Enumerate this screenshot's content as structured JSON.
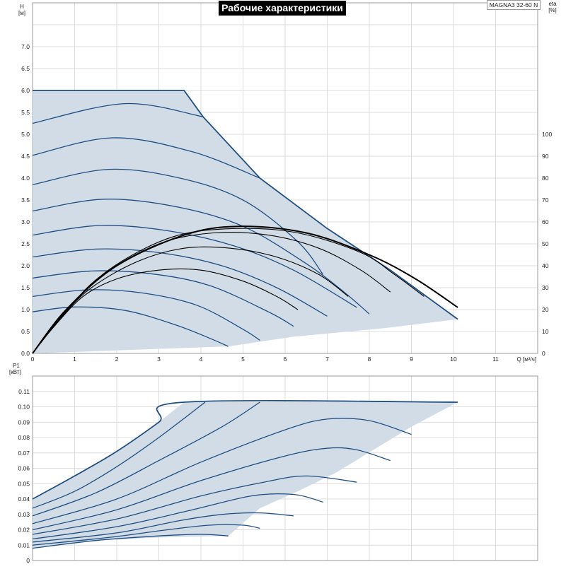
{
  "header": {
    "title": "Рабочие характеристики",
    "model": "MAGNA3 32-60 N"
  },
  "colors": {
    "fill": "#d2dce6",
    "curve": "#1f4f82",
    "eff": "#000000",
    "grid": "#dcdcdc"
  },
  "chart_data": [
    {
      "id": "head",
      "type": "line",
      "title": "Рабочие характеристики",
      "xlabel": "Q [м³/ч]",
      "ylabel": "H [м]",
      "y2label": "eta [%]",
      "xlim": [
        0,
        12
      ],
      "ylim": [
        0,
        8
      ],
      "y2lim": [
        0,
        160
      ],
      "x_ticks": [
        "0",
        "1",
        "2",
        "3",
        "4",
        "5",
        "6",
        "7",
        "8",
        "9",
        "10",
        "11"
      ],
      "y_ticks": [
        "0.0",
        "0.5",
        "1.0",
        "1.5",
        "2.0",
        "2.5",
        "3.0",
        "3.5",
        "4.0",
        "4.5",
        "5.0",
        "5.5",
        "6.0",
        "6.5",
        "7.0"
      ],
      "y2_ticks": [
        "0",
        "10",
        "20",
        "30",
        "40",
        "50",
        "60",
        "70",
        "80",
        "90",
        "100"
      ],
      "grid": true,
      "envelope": [
        [
          0,
          6.0
        ],
        [
          3.6,
          6.0
        ],
        [
          4.05,
          5.4
        ],
        [
          5.4,
          4.0
        ],
        [
          7.0,
          2.85
        ],
        [
          8.5,
          1.9
        ],
        [
          10.1,
          0.78
        ],
        [
          8.4,
          0.58
        ],
        [
          6.2,
          0.38
        ],
        [
          4.65,
          0.16
        ],
        [
          0,
          0
        ]
      ],
      "series": [
        {
          "values": [
            [
              0,
              5.25
            ],
            [
              2.2,
              5.7
            ],
            [
              4.05,
              5.4
            ]
          ]
        },
        {
          "values": [
            [
              0,
              4.52
            ],
            [
              1.9,
              4.92
            ],
            [
              3.8,
              4.6
            ],
            [
              5.4,
              4.0
            ]
          ]
        },
        {
          "values": [
            [
              0,
              3.85
            ],
            [
              1.8,
              4.2
            ],
            [
              3.5,
              4.0
            ],
            [
              5.0,
              3.5
            ],
            [
              6.3,
              2.55
            ],
            [
              6.9,
              1.8
            ]
          ]
        },
        {
          "values": [
            [
              0,
              3.25
            ],
            [
              1.7,
              3.52
            ],
            [
              3.4,
              3.35
            ],
            [
              5.0,
              2.9
            ],
            [
              6.5,
              2.05
            ],
            [
              7.4,
              1.4
            ],
            [
              8.0,
              0.9
            ]
          ]
        },
        {
          "values": [
            [
              0,
              2.7
            ],
            [
              1.6,
              2.92
            ],
            [
              3.2,
              2.8
            ],
            [
              4.8,
              2.45
            ],
            [
              6.2,
              1.9
            ],
            [
              7.7,
              1.05
            ]
          ]
        },
        {
          "values": [
            [
              0,
              2.2
            ],
            [
              1.5,
              2.38
            ],
            [
              3.0,
              2.3
            ],
            [
              4.5,
              2.0
            ],
            [
              5.8,
              1.5
            ],
            [
              7.0,
              0.85
            ]
          ]
        },
        {
          "values": [
            [
              0,
              1.72
            ],
            [
              1.4,
              1.88
            ],
            [
              2.8,
              1.82
            ],
            [
              4.2,
              1.55
            ],
            [
              5.6,
              0.95
            ],
            [
              6.2,
              0.62
            ]
          ]
        },
        {
          "values": [
            [
              0,
              1.3
            ],
            [
              1.3,
              1.45
            ],
            [
              2.6,
              1.38
            ],
            [
              3.9,
              1.1
            ],
            [
              5.0,
              0.55
            ],
            [
              5.4,
              0.3
            ]
          ]
        },
        {
          "values": [
            [
              0,
              0.95
            ],
            [
              1.0,
              1.06
            ],
            [
              2.2,
              0.98
            ],
            [
              3.4,
              0.65
            ],
            [
              4.2,
              0.35
            ],
            [
              4.65,
              0.16
            ]
          ]
        }
      ],
      "efficiency_series": [
        {
          "values": [
            [
              0,
              0
            ],
            [
              0.5,
              12
            ],
            [
              1.2,
              26
            ],
            [
              2.0,
              34
            ],
            [
              3.0,
              38
            ],
            [
              4.0,
              38
            ],
            [
              5.0,
              33
            ],
            [
              5.8,
              26
            ],
            [
              6.3,
              20
            ]
          ]
        },
        {
          "values": [
            [
              0,
              0
            ],
            [
              0.6,
              15
            ],
            [
              1.4,
              30
            ],
            [
              2.5,
              42
            ],
            [
              3.6,
              48
            ],
            [
              4.7,
              48
            ],
            [
              5.8,
              44
            ],
            [
              6.8,
              36
            ],
            [
              7.5,
              26
            ]
          ]
        },
        {
          "values": [
            [
              0,
              0
            ],
            [
              0.7,
              17
            ],
            [
              1.6,
              35
            ],
            [
              3.0,
              50
            ],
            [
              4.3,
              55
            ],
            [
              5.6,
              54
            ],
            [
              6.8,
              48
            ],
            [
              7.8,
              38
            ],
            [
              8.5,
              28
            ]
          ]
        },
        {
          "values": [
            [
              0,
              0
            ],
            [
              0.8,
              19
            ],
            [
              1.8,
              38
            ],
            [
              3.3,
              53
            ],
            [
              4.8,
              57
            ],
            [
              6.3,
              55
            ],
            [
              7.8,
              46
            ],
            [
              8.6,
              36
            ],
            [
              9.3,
              26
            ]
          ]
        },
        {
          "values": [
            [
              0,
              0
            ],
            [
              0.8,
              20
            ],
            [
              2.0,
              40
            ],
            [
              3.6,
              54
            ],
            [
              4.9,
              58
            ],
            [
              6.5,
              55
            ],
            [
              8.0,
              45
            ],
            [
              9.1,
              34
            ],
            [
              10.1,
              21
            ]
          ]
        }
      ]
    },
    {
      "id": "power",
      "type": "line",
      "xlabel": "",
      "ylabel": "P1 [кВт]",
      "xlim": [
        0,
        12
      ],
      "ylim": [
        0,
        0.12
      ],
      "y_ticks": [
        "0",
        "0.01",
        "0.02",
        "0.03",
        "0.04",
        "0.05",
        "0.06",
        "0.07",
        "0.08",
        "0.09",
        "0.10",
        "0.11"
      ],
      "grid": true,
      "envelope": [
        [
          0,
          0.04
        ],
        [
          1,
          0.055
        ],
        [
          2,
          0.071
        ],
        [
          3,
          0.09
        ],
        [
          3.6,
          0.103
        ],
        [
          10.1,
          0.103
        ],
        [
          9.0,
          0.087
        ],
        [
          8.1,
          0.072
        ],
        [
          7.2,
          0.057
        ],
        [
          6.3,
          0.045
        ],
        [
          5.4,
          0.034
        ],
        [
          4.65,
          0.016
        ],
        [
          3.0,
          0.015
        ],
        [
          1.5,
          0.013
        ],
        [
          0,
          0.008
        ]
      ],
      "series": [
        {
          "values": [
            [
              0,
              0.04
            ],
            [
              1,
              0.055
            ],
            [
              2,
              0.071
            ],
            [
              3,
              0.09
            ],
            [
              3.6,
              0.103
            ],
            [
              10.1,
              0.103
            ]
          ]
        },
        {
          "values": [
            [
              0,
              0.034
            ],
            [
              1,
              0.045
            ],
            [
              2.0,
              0.061
            ],
            [
              3.0,
              0.08
            ],
            [
              4.1,
              0.103
            ]
          ]
        },
        {
          "values": [
            [
              0,
              0.029
            ],
            [
              1.5,
              0.044
            ],
            [
              3.0,
              0.065
            ],
            [
              4.5,
              0.087
            ],
            [
              5.4,
              0.103
            ]
          ]
        },
        {
          "values": [
            [
              0,
              0.024
            ],
            [
              2.0,
              0.04
            ],
            [
              4.0,
              0.064
            ],
            [
              6.0,
              0.085
            ],
            [
              7.0,
              0.092
            ],
            [
              8.0,
              0.091
            ],
            [
              9.0,
              0.082
            ]
          ]
        },
        {
          "values": [
            [
              0,
              0.02
            ],
            [
              2.0,
              0.033
            ],
            [
              4.0,
              0.052
            ],
            [
              6.0,
              0.068
            ],
            [
              7.0,
              0.073
            ],
            [
              7.7,
              0.072
            ],
            [
              8.5,
              0.065
            ]
          ]
        },
        {
          "values": [
            [
              0,
              0.017
            ],
            [
              2.0,
              0.027
            ],
            [
              4.0,
              0.042
            ],
            [
              5.5,
              0.051
            ],
            [
              6.5,
              0.055
            ],
            [
              7.7,
              0.051
            ]
          ]
        },
        {
          "values": [
            [
              0,
              0.014
            ],
            [
              2.0,
              0.022
            ],
            [
              3.8,
              0.033
            ],
            [
              5.2,
              0.042
            ],
            [
              6.2,
              0.043
            ],
            [
              6.9,
              0.038
            ]
          ]
        },
        {
          "values": [
            [
              0,
              0.012
            ],
            [
              2.0,
              0.018
            ],
            [
              3.5,
              0.026
            ],
            [
              4.5,
              0.03
            ],
            [
              5.4,
              0.031
            ],
            [
              6.2,
              0.029
            ]
          ]
        },
        {
          "values": [
            [
              0,
              0.01
            ],
            [
              1.8,
              0.015
            ],
            [
              3.2,
              0.02
            ],
            [
              4.2,
              0.023
            ],
            [
              5.0,
              0.023
            ],
            [
              5.4,
              0.021
            ]
          ]
        },
        {
          "values": [
            [
              0,
              0.008
            ],
            [
              1.5,
              0.013
            ],
            [
              3.0,
              0.016
            ],
            [
              4.0,
              0.017
            ],
            [
              4.65,
              0.016
            ]
          ]
        }
      ]
    }
  ]
}
